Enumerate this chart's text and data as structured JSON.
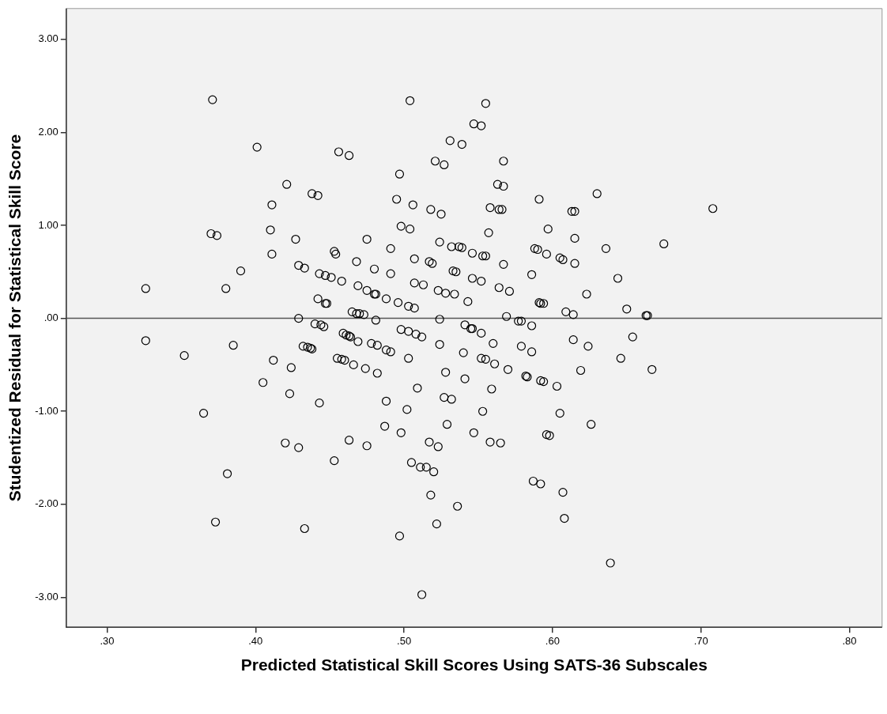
{
  "chart_data": {
    "type": "scatter",
    "xlabel": "Predicted Statistical Skill Scores Using SATS-36 Subscales",
    "ylabel": "Studentized Residual for Statistical Skill Score",
    "xlim": [
      0.2725,
      0.822
    ],
    "ylim": [
      -3.32,
      3.33
    ],
    "xticks": [
      {
        "value": 0.3,
        "label": ".30"
      },
      {
        "value": 0.4,
        "label": ".40"
      },
      {
        "value": 0.5,
        "label": ".50"
      },
      {
        "value": 0.6,
        "label": ".60"
      },
      {
        "value": 0.7,
        "label": ".70"
      },
      {
        "value": 0.8,
        "label": ".80"
      }
    ],
    "yticks": [
      {
        "value": -3,
        "label": "-3.00"
      },
      {
        "value": -2,
        "label": "-2.00"
      },
      {
        "value": -1,
        "label": "-1.00"
      },
      {
        "value": 0,
        "label": ".00"
      },
      {
        "value": 1,
        "label": "1.00"
      },
      {
        "value": 2,
        "label": "2.00"
      },
      {
        "value": 3,
        "label": "3.00"
      }
    ],
    "marker": "circle",
    "ref_lines": [
      {
        "axis": "y",
        "value": 0,
        "color": "#555555"
      }
    ],
    "series": [
      {
        "color": "#000000",
        "x": [
          0.371,
          0.504,
          0.555,
          0.547,
          0.552,
          0.401,
          0.531,
          0.539,
          0.456,
          0.463,
          0.521,
          0.527,
          0.567,
          0.497,
          0.421,
          0.438,
          0.442,
          0.563,
          0.567,
          0.63,
          0.495,
          0.591,
          0.411,
          0.506,
          0.518,
          0.525,
          0.558,
          0.564,
          0.566,
          0.613,
          0.615,
          0.708,
          0.498,
          0.504,
          0.597,
          0.41,
          0.37,
          0.374,
          0.557,
          0.615,
          0.475,
          0.427,
          0.675,
          0.636,
          0.524,
          0.532,
          0.537,
          0.539,
          0.588,
          0.59,
          0.491,
          0.546,
          0.553,
          0.555,
          0.596,
          0.453,
          0.454,
          0.411,
          0.605,
          0.607,
          0.507,
          0.517,
          0.519,
          0.567,
          0.615,
          0.468,
          0.429,
          0.433,
          0.39,
          0.48,
          0.533,
          0.535,
          0.443,
          0.447,
          0.451,
          0.491,
          0.586,
          0.644,
          0.546,
          0.552,
          0.458,
          0.507,
          0.513,
          0.469,
          0.564,
          0.571,
          0.38,
          0.523,
          0.528,
          0.534,
          0.475,
          0.48,
          0.481,
          0.623,
          0.326,
          0.543,
          0.488,
          0.496,
          0.442,
          0.447,
          0.448,
          0.591,
          0.592,
          0.594,
          0.503,
          0.507,
          0.465,
          0.468,
          0.47,
          0.473,
          0.65,
          0.609,
          0.614,
          0.569,
          0.663,
          0.664,
          0.429,
          0.524,
          0.481,
          0.577,
          0.579,
          0.44,
          0.444,
          0.446,
          0.586,
          0.541,
          0.545,
          0.546,
          0.654,
          0.498,
          0.503,
          0.508,
          0.552,
          0.459,
          0.461,
          0.463,
          0.464,
          0.326,
          0.614,
          0.624,
          0.512,
          0.469,
          0.478,
          0.482,
          0.488,
          0.491,
          0.432,
          0.435,
          0.437,
          0.438,
          0.56,
          0.579,
          0.524,
          0.385,
          0.586,
          0.54,
          0.552,
          0.555,
          0.455,
          0.458,
          0.46,
          0.646,
          0.352,
          0.412,
          0.503,
          0.561,
          0.466,
          0.474,
          0.482,
          0.667,
          0.57,
          0.424,
          0.619,
          0.528,
          0.582,
          0.583,
          0.592,
          0.594,
          0.541,
          0.509,
          0.603,
          0.559,
          0.405,
          0.423,
          0.527,
          0.532,
          0.488,
          0.443,
          0.502,
          0.605,
          0.553,
          0.365,
          0.596,
          0.598,
          0.529,
          0.487,
          0.626,
          0.498,
          0.547,
          0.463,
          0.517,
          0.523,
          0.558,
          0.565,
          0.42,
          0.429,
          0.475,
          0.453,
          0.505,
          0.511,
          0.515,
          0.52,
          0.381,
          0.587,
          0.592,
          0.607,
          0.518,
          0.536,
          0.373,
          0.433,
          0.608,
          0.522,
          0.497,
          0.639,
          0.512
        ],
        "values": [
          2.35,
          2.34,
          2.31,
          2.09,
          2.07,
          1.84,
          1.91,
          1.87,
          1.79,
          1.75,
          1.69,
          1.65,
          1.69,
          1.55,
          1.44,
          1.34,
          1.32,
          1.44,
          1.42,
          1.34,
          1.28,
          1.28,
          1.22,
          1.22,
          1.17,
          1.12,
          1.19,
          1.17,
          1.17,
          1.15,
          1.15,
          1.18,
          0.99,
          0.96,
          0.96,
          0.95,
          0.91,
          0.89,
          0.92,
          0.86,
          0.85,
          0.85,
          0.8,
          0.75,
          0.82,
          0.77,
          0.77,
          0.76,
          0.75,
          0.74,
          0.75,
          0.7,
          0.67,
          0.67,
          0.69,
          0.72,
          0.69,
          0.69,
          0.65,
          0.63,
          0.64,
          0.61,
          0.59,
          0.58,
          0.59,
          0.61,
          0.57,
          0.54,
          0.51,
          0.53,
          0.51,
          0.5,
          0.48,
          0.46,
          0.44,
          0.48,
          0.47,
          0.43,
          0.43,
          0.4,
          0.4,
          0.38,
          0.36,
          0.35,
          0.33,
          0.29,
          0.32,
          0.3,
          0.27,
          0.26,
          0.3,
          0.26,
          0.26,
          0.26,
          0.32,
          0.18,
          0.21,
          0.17,
          0.21,
          0.16,
          0.16,
          0.17,
          0.16,
          0.16,
          0.13,
          0.11,
          0.07,
          0.05,
          0.05,
          0.04,
          0.1,
          0.07,
          0.04,
          0.02,
          0.03,
          0.03,
          0.0,
          -0.01,
          -0.02,
          -0.03,
          -0.03,
          -0.06,
          -0.07,
          -0.09,
          -0.08,
          -0.07,
          -0.11,
          -0.11,
          -0.2,
          -0.12,
          -0.14,
          -0.17,
          -0.16,
          -0.16,
          -0.18,
          -0.19,
          -0.2,
          -0.24,
          -0.23,
          -0.3,
          -0.2,
          -0.25,
          -0.27,
          -0.29,
          -0.34,
          -0.36,
          -0.3,
          -0.31,
          -0.32,
          -0.33,
          -0.27,
          -0.3,
          -0.28,
          -0.29,
          -0.36,
          -0.37,
          -0.43,
          -0.44,
          -0.43,
          -0.44,
          -0.45,
          -0.43,
          -0.4,
          -0.45,
          -0.43,
          -0.49,
          -0.5,
          -0.54,
          -0.59,
          -0.55,
          -0.55,
          -0.53,
          -0.56,
          -0.58,
          -0.62,
          -0.63,
          -0.67,
          -0.68,
          -0.65,
          -0.75,
          -0.73,
          -0.76,
          -0.69,
          -0.81,
          -0.85,
          -0.87,
          -0.89,
          -0.91,
          -0.98,
          -1.02,
          -1.0,
          -1.02,
          -1.25,
          -1.26,
          -1.14,
          -1.16,
          -1.14,
          -1.23,
          -1.23,
          -1.31,
          -1.33,
          -1.38,
          -1.33,
          -1.34,
          -1.34,
          -1.39,
          -1.37,
          -1.53,
          -1.55,
          -1.6,
          -1.6,
          -1.65,
          -1.67,
          -1.75,
          -1.78,
          -1.87,
          -1.9,
          -2.02,
          -2.19,
          -2.26,
          -2.15,
          -2.21,
          -2.34,
          -2.63,
          -2.97
        ]
      }
    ]
  }
}
